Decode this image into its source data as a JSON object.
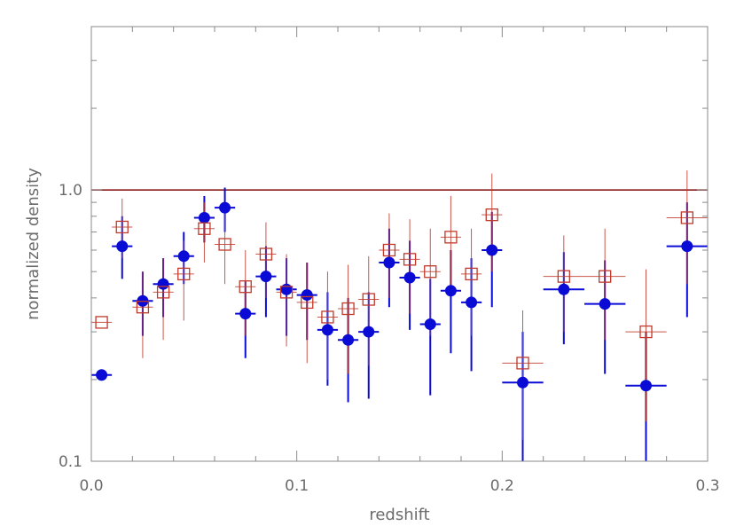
{
  "chart_data": {
    "type": "scatter",
    "xlabel": "redshift",
    "ylabel": "normalized density",
    "xlim": [
      0.0,
      0.3
    ],
    "ylim": [
      0.1,
      4.0
    ],
    "y_scale": "log",
    "x_ticks": [
      {
        "value": 0.0,
        "label": "0.0"
      },
      {
        "value": 0.1,
        "label": "0.1"
      },
      {
        "value": 0.2,
        "label": "0.2"
      },
      {
        "value": 0.3,
        "label": "0.3"
      }
    ],
    "y_ticks": [
      {
        "value": 0.1,
        "label": "0.1"
      },
      {
        "value": 1.0,
        "label": "1.0"
      }
    ],
    "reference_line": {
      "y": 1.0,
      "color": "#8b1a1a"
    },
    "series": [
      {
        "marker": "filled-circle",
        "color": "#0b0bd6",
        "points": [
          {
            "x": 0.005,
            "y": 0.208,
            "xerr": 0.005,
            "ylo": 0.208,
            "yhi": 0.208
          },
          {
            "x": 0.015,
            "y": 0.62,
            "xerr": 0.005,
            "ylo": 0.47,
            "yhi": 0.8
          },
          {
            "x": 0.025,
            "y": 0.39,
            "xerr": 0.005,
            "ylo": 0.29,
            "yhi": 0.5
          },
          {
            "x": 0.035,
            "y": 0.45,
            "xerr": 0.005,
            "ylo": 0.34,
            "yhi": 0.56
          },
          {
            "x": 0.045,
            "y": 0.57,
            "xerr": 0.005,
            "ylo": 0.45,
            "yhi": 0.7
          },
          {
            "x": 0.055,
            "y": 0.79,
            "xerr": 0.005,
            "ylo": 0.64,
            "yhi": 0.95
          },
          {
            "x": 0.065,
            "y": 0.86,
            "xerr": 0.005,
            "ylo": 0.7,
            "yhi": 1.02
          },
          {
            "x": 0.075,
            "y": 0.35,
            "xerr": 0.005,
            "ylo": 0.24,
            "yhi": 0.46
          },
          {
            "x": 0.085,
            "y": 0.48,
            "xerr": 0.005,
            "ylo": 0.34,
            "yhi": 0.62
          },
          {
            "x": 0.095,
            "y": 0.43,
            "xerr": 0.005,
            "ylo": 0.29,
            "yhi": 0.56
          },
          {
            "x": 0.105,
            "y": 0.41,
            "xerr": 0.005,
            "ylo": 0.28,
            "yhi": 0.54
          },
          {
            "x": 0.115,
            "y": 0.305,
            "xerr": 0.005,
            "ylo": 0.19,
            "yhi": 0.42
          },
          {
            "x": 0.125,
            "y": 0.28,
            "xerr": 0.005,
            "ylo": 0.165,
            "yhi": 0.4
          },
          {
            "x": 0.135,
            "y": 0.3,
            "xerr": 0.005,
            "ylo": 0.17,
            "yhi": 0.42
          },
          {
            "x": 0.145,
            "y": 0.54,
            "xerr": 0.005,
            "ylo": 0.37,
            "yhi": 0.72
          },
          {
            "x": 0.155,
            "y": 0.475,
            "xerr": 0.005,
            "ylo": 0.305,
            "yhi": 0.65
          },
          {
            "x": 0.165,
            "y": 0.32,
            "xerr": 0.005,
            "ylo": 0.175,
            "yhi": 0.47
          },
          {
            "x": 0.175,
            "y": 0.425,
            "xerr": 0.005,
            "ylo": 0.25,
            "yhi": 0.6
          },
          {
            "x": 0.185,
            "y": 0.385,
            "xerr": 0.005,
            "ylo": 0.215,
            "yhi": 0.56
          },
          {
            "x": 0.195,
            "y": 0.6,
            "xerr": 0.005,
            "ylo": 0.37,
            "yhi": 0.83
          },
          {
            "x": 0.21,
            "y": 0.195,
            "xerr": 0.01,
            "ylo": 0.1,
            "yhi": 0.3
          },
          {
            "x": 0.23,
            "y": 0.43,
            "xerr": 0.01,
            "ylo": 0.27,
            "yhi": 0.59
          },
          {
            "x": 0.25,
            "y": 0.38,
            "xerr": 0.01,
            "ylo": 0.21,
            "yhi": 0.55
          },
          {
            "x": 0.27,
            "y": 0.19,
            "xerr": 0.01,
            "ylo": 0.1,
            "yhi": 0.3
          },
          {
            "x": 0.29,
            "y": 0.62,
            "xerr": 0.01,
            "ylo": 0.34,
            "yhi": 0.9
          }
        ]
      },
      {
        "marker": "open-square",
        "color": "#c0392b",
        "points": [
          {
            "x": 0.005,
            "y": 0.325,
            "xerr": 0.005,
            "ylo": 0.325,
            "yhi": 0.325
          },
          {
            "x": 0.015,
            "y": 0.73,
            "xerr": 0.005,
            "ylo": 0.56,
            "yhi": 0.93
          },
          {
            "x": 0.025,
            "y": 0.37,
            "xerr": 0.005,
            "ylo": 0.24,
            "yhi": 0.5
          },
          {
            "x": 0.035,
            "y": 0.42,
            "xerr": 0.005,
            "ylo": 0.28,
            "yhi": 0.56
          },
          {
            "x": 0.045,
            "y": 0.49,
            "xerr": 0.005,
            "ylo": 0.33,
            "yhi": 0.65
          },
          {
            "x": 0.055,
            "y": 0.72,
            "xerr": 0.005,
            "ylo": 0.54,
            "yhi": 0.9
          },
          {
            "x": 0.065,
            "y": 0.63,
            "xerr": 0.005,
            "ylo": 0.45,
            "yhi": 0.82
          },
          {
            "x": 0.075,
            "y": 0.44,
            "xerr": 0.005,
            "ylo": 0.29,
            "yhi": 0.6
          },
          {
            "x": 0.085,
            "y": 0.58,
            "xerr": 0.005,
            "ylo": 0.4,
            "yhi": 0.76
          },
          {
            "x": 0.095,
            "y": 0.42,
            "xerr": 0.005,
            "ylo": 0.265,
            "yhi": 0.58
          },
          {
            "x": 0.105,
            "y": 0.385,
            "xerr": 0.005,
            "ylo": 0.23,
            "yhi": 0.54
          },
          {
            "x": 0.115,
            "y": 0.34,
            "xerr": 0.005,
            "ylo": 0.2,
            "yhi": 0.5
          },
          {
            "x": 0.125,
            "y": 0.365,
            "xerr": 0.005,
            "ylo": 0.21,
            "yhi": 0.53
          },
          {
            "x": 0.135,
            "y": 0.395,
            "xerr": 0.005,
            "ylo": 0.225,
            "yhi": 0.57
          },
          {
            "x": 0.145,
            "y": 0.6,
            "xerr": 0.005,
            "ylo": 0.4,
            "yhi": 0.82
          },
          {
            "x": 0.155,
            "y": 0.555,
            "xerr": 0.005,
            "ylo": 0.35,
            "yhi": 0.78
          },
          {
            "x": 0.165,
            "y": 0.5,
            "xerr": 0.005,
            "ylo": 0.29,
            "yhi": 0.72
          },
          {
            "x": 0.175,
            "y": 0.67,
            "xerr": 0.005,
            "ylo": 0.42,
            "yhi": 0.95
          },
          {
            "x": 0.185,
            "y": 0.49,
            "xerr": 0.005,
            "ylo": 0.29,
            "yhi": 0.72
          },
          {
            "x": 0.195,
            "y": 0.81,
            "xerr": 0.005,
            "ylo": 0.5,
            "yhi": 1.15
          },
          {
            "x": 0.21,
            "y": 0.23,
            "xerr": 0.01,
            "ylo": 0.12,
            "yhi": 0.36
          },
          {
            "x": 0.23,
            "y": 0.48,
            "xerr": 0.01,
            "ylo": 0.3,
            "yhi": 0.68
          },
          {
            "x": 0.25,
            "y": 0.48,
            "xerr": 0.01,
            "ylo": 0.28,
            "yhi": 0.72
          },
          {
            "x": 0.27,
            "y": 0.3,
            "xerr": 0.01,
            "ylo": 0.14,
            "yhi": 0.51
          },
          {
            "x": 0.29,
            "y": 0.79,
            "xerr": 0.01,
            "ylo": 0.45,
            "yhi": 1.18
          }
        ]
      }
    ]
  }
}
